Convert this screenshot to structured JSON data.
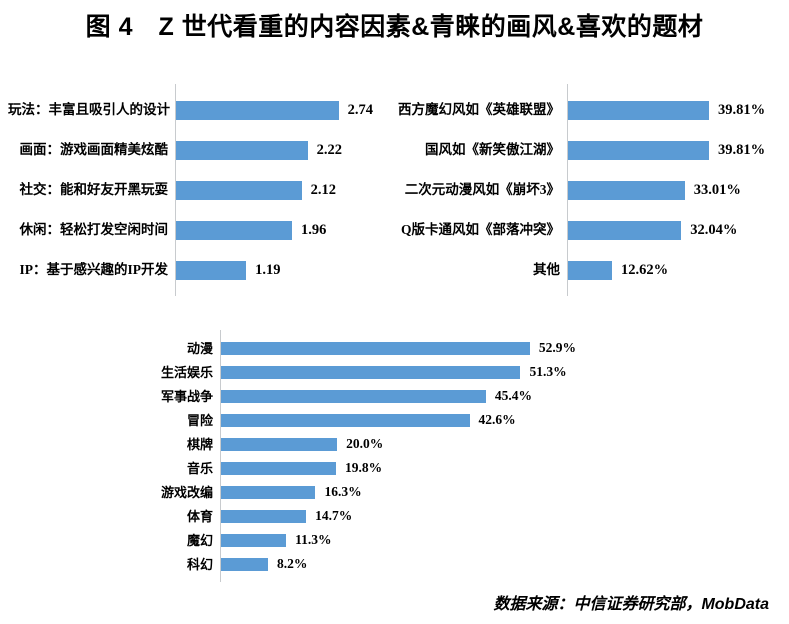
{
  "figure": {
    "title": "图 4　Z 世代看重的内容因素&青睐的画风&喜欢的题材",
    "source_note": "数据来源：中信证券研究部，MobData"
  },
  "colors": {
    "bar": "#5B9BD5",
    "axis_line": "#C8CBCE",
    "text": "#000000"
  },
  "chart_data": [
    {
      "id": "content-factors",
      "name": "Z世代看重的内容因素",
      "type": "bar",
      "orientation": "horizontal",
      "categories": [
        "玩法：丰富且吸引人的设计",
        "画面：游戏画面精美炫酷",
        "社交：能和好友开黑玩耍",
        "休闲：轻松打发空闲时间",
        "IP：基于感兴趣的IP开发"
      ],
      "values": [
        2.74,
        2.22,
        2.12,
        1.96,
        1.19
      ],
      "labels": [
        "2.74",
        "2.22",
        "2.12",
        "1.96",
        "1.19"
      ],
      "xlim": [
        0,
        3.6
      ],
      "grid": false,
      "legend": false
    },
    {
      "id": "art-styles",
      "name": "Z世代青睐的画风",
      "type": "bar",
      "orientation": "horizontal",
      "categories": [
        "西方魔幻风如《英雄联盟》",
        "国风如《新笑傲江湖》",
        "二次元动漫风如《崩坏3》",
        "Q版卡通风如《部落冲突》",
        "其他"
      ],
      "values": [
        39.81,
        39.81,
        33.01,
        32.04,
        12.62
      ],
      "labels": [
        "39.81%",
        "39.81%",
        "33.01%",
        "32.04%",
        "12.62%"
      ],
      "xlim": [
        0,
        60
      ],
      "grid": false,
      "legend": false
    },
    {
      "id": "themes",
      "name": "Z世代喜欢的题材",
      "type": "bar",
      "orientation": "horizontal",
      "categories": [
        "动漫",
        "生活娱乐",
        "军事战争",
        "冒险",
        "棋牌",
        "音乐",
        "游戏改编",
        "体育",
        "魔幻",
        "科幻"
      ],
      "values": [
        52.9,
        51.3,
        45.4,
        42.6,
        20.0,
        19.8,
        16.3,
        14.7,
        11.3,
        8.2
      ],
      "labels": [
        "52.9%",
        "51.3%",
        "45.4%",
        "42.6%",
        "20.0%",
        "19.8%",
        "16.3%",
        "14.7%",
        "11.3%",
        "8.2%"
      ],
      "xlim": [
        0,
        70
      ],
      "grid": false,
      "legend": false
    }
  ]
}
